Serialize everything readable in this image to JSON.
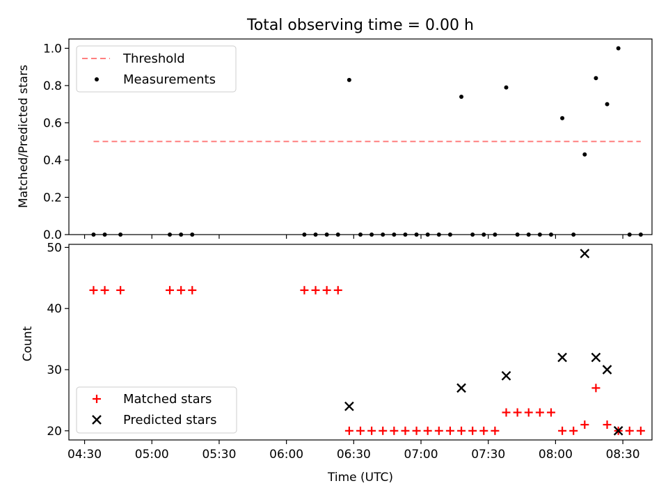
{
  "chart_data": [
    {
      "type": "scatter",
      "title": "Total observing time = 0.00 h",
      "xlabel": "",
      "ylabel": "Matched/Predicted stars",
      "xlim": [
        "04:23",
        "08:43"
      ],
      "ylim": [
        0,
        1.05
      ],
      "y_ticks": [
        "0.0",
        "0.2",
        "0.4",
        "0.6",
        "0.8",
        "1.0"
      ],
      "legend_position": "upper-left",
      "threshold": {
        "name": "Threshold",
        "color": "#ff7f7f",
        "y": 0.5,
        "x_range": [
          "04:34",
          "08:38"
        ]
      },
      "series": [
        {
          "name": "Measurements",
          "color": "#000000",
          "marker": "dot",
          "x": [
            "04:34",
            "04:39",
            "04:46",
            "05:08",
            "05:13",
            "05:18",
            "06:08",
            "06:13",
            "06:18",
            "06:23",
            "06:28",
            "06:33",
            "06:38",
            "06:43",
            "06:48",
            "06:53",
            "06:58",
            "07:03",
            "07:08",
            "07:13",
            "07:18",
            "07:23",
            "07:28",
            "07:33",
            "07:38",
            "07:43",
            "07:48",
            "07:53",
            "07:58",
            "08:03",
            "08:08",
            "08:13",
            "08:18",
            "08:23",
            "08:28",
            "08:33",
            "08:38"
          ],
          "y": [
            0,
            0,
            0,
            0,
            0,
            0,
            0,
            0,
            0,
            0,
            0.83,
            0,
            0,
            0,
            0,
            0,
            0,
            0,
            0,
            0,
            0.74,
            0,
            0,
            0,
            0.79,
            0,
            0,
            0,
            0,
            0.625,
            0,
            0.43,
            0.84,
            0.7,
            1.0,
            0,
            0
          ]
        }
      ]
    },
    {
      "type": "scatter",
      "title": "",
      "xlabel": "Time (UTC)",
      "ylabel": "Count",
      "xlim": [
        "04:23",
        "08:43"
      ],
      "ylim": [
        18.5,
        50.5
      ],
      "y_ticks": [
        "20",
        "30",
        "40",
        "50"
      ],
      "x_ticks": [
        "04:30",
        "05:00",
        "05:30",
        "06:00",
        "06:30",
        "07:00",
        "07:30",
        "08:00",
        "08:30"
      ],
      "legend_position": "lower-left",
      "series": [
        {
          "name": "Matched stars",
          "color": "#ff0000",
          "marker": "plus",
          "x": [
            "04:34",
            "04:39",
            "04:46",
            "05:08",
            "05:13",
            "05:18",
            "06:08",
            "06:13",
            "06:18",
            "06:23",
            "06:28",
            "06:33",
            "06:38",
            "06:43",
            "06:48",
            "06:53",
            "06:58",
            "07:03",
            "07:08",
            "07:13",
            "07:18",
            "07:23",
            "07:28",
            "07:33",
            "07:38",
            "07:43",
            "07:48",
            "07:53",
            "07:58",
            "08:03",
            "08:08",
            "08:13",
            "08:18",
            "08:23",
            "08:28",
            "08:33",
            "08:38"
          ],
          "y": [
            43,
            43,
            43,
            43,
            43,
            43,
            43,
            43,
            43,
            43,
            20,
            20,
            20,
            20,
            20,
            20,
            20,
            20,
            20,
            20,
            20,
            20,
            20,
            20,
            23,
            23,
            23,
            23,
            23,
            20,
            20,
            21,
            27,
            21,
            20,
            20,
            20
          ]
        },
        {
          "name": "Predicted stars",
          "color": "#000000",
          "marker": "x",
          "x": [
            "06:28",
            "07:18",
            "07:38",
            "08:03",
            "08:13",
            "08:18",
            "08:23",
            "08:28"
          ],
          "y": [
            24,
            27,
            29,
            32,
            49,
            32,
            30,
            20
          ]
        }
      ]
    }
  ]
}
